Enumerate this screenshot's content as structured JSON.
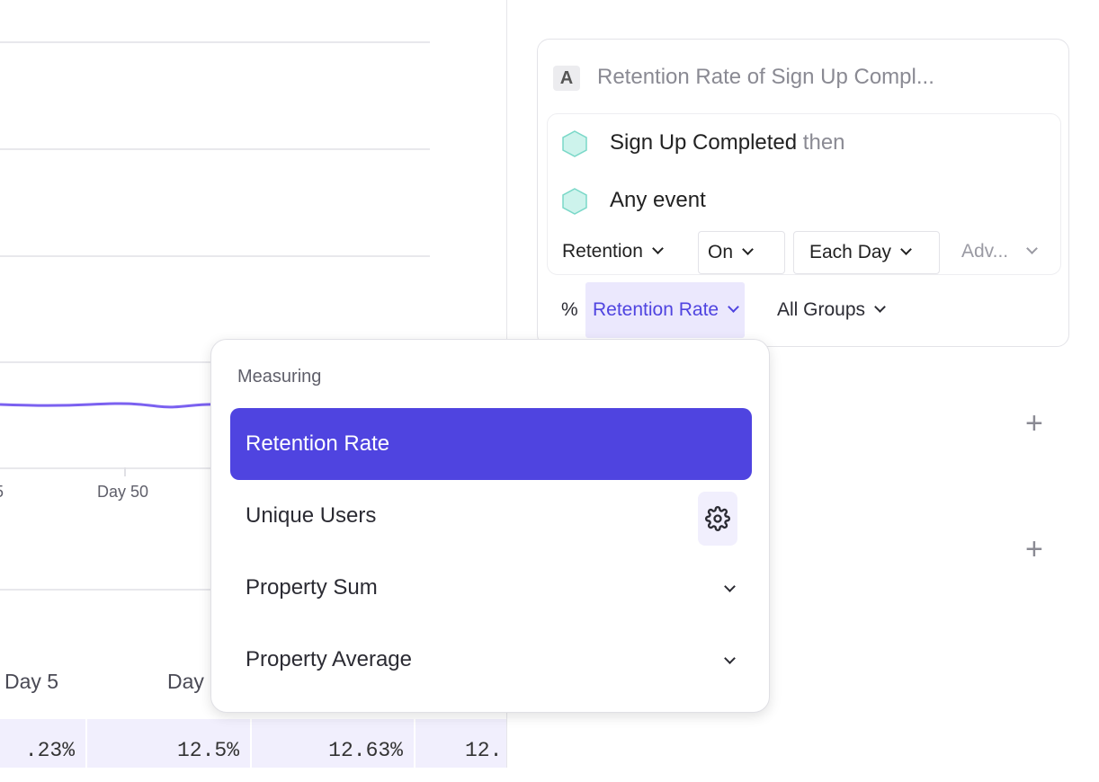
{
  "chart": {
    "x_ticks": [
      "5",
      "Day 50"
    ],
    "line_color": "#7b61f0"
  },
  "table": {
    "headers": [
      "Day 5",
      "Day"
    ],
    "cells": [
      ".23%",
      "12.5%",
      "12.63%",
      "12."
    ]
  },
  "query": {
    "badge": "A",
    "title": "Retention Rate of Sign Up Compl...",
    "events": [
      {
        "name": "Sign Up Completed",
        "suffix": "then"
      },
      {
        "name": "Any event"
      }
    ],
    "controls": {
      "type": "Retention",
      "on": "On",
      "interval": "Each Day",
      "advanced": "Adv..."
    },
    "measure": {
      "symbol": "%",
      "value": "Retention Rate",
      "groups": "All Groups"
    },
    "accent": "#4f44e0"
  },
  "menu": {
    "header": "Measuring",
    "items": [
      {
        "label": "Retention Rate",
        "selected": true
      },
      {
        "label": "Unique Users",
        "icon": "gear-icon"
      },
      {
        "label": "Property Sum",
        "icon": "chevron-down-icon"
      },
      {
        "label": "Property Average",
        "icon": "chevron-down-icon"
      }
    ]
  },
  "side_buttons": [
    "+",
    "+"
  ]
}
